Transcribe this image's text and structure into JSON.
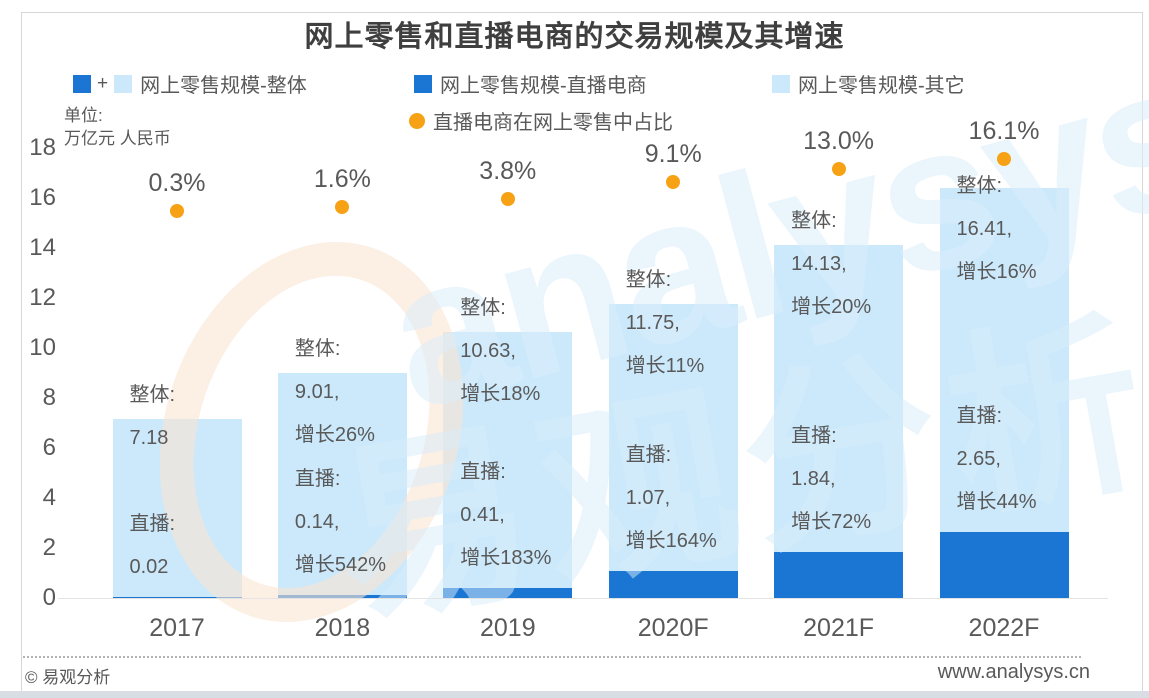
{
  "title": "网上零售和直播电商的交易规模及其增速",
  "unit": {
    "line1": "单位:",
    "line2": "万亿元 人民币"
  },
  "legend": {
    "overall": "网上零售规模-整体",
    "overall_plus": "+",
    "live": "网上零售规模-直播电商",
    "other": "网上零售规模-其它",
    "share": "直播电商在网上零售中占比"
  },
  "footer": {
    "copyright": "© 易观分析",
    "website": "www.analysys.cn"
  },
  "watermark": {
    "latin": "analysys",
    "cjk": "易观分析"
  },
  "colors": {
    "live_blue": "#1a76d2",
    "other_blue": "#cbe9fb",
    "share_orange": "#f7a114",
    "text_gray": "#595959",
    "title_gray": "#3f3f3f"
  },
  "chart_data": {
    "type": "bar",
    "stacked": true,
    "title": "网上零售和直播电商的交易规模及其增速",
    "ylabel": "万亿元 人民币",
    "ylim": [
      0,
      18
    ],
    "yticks": [
      0,
      2,
      4,
      6,
      8,
      10,
      12,
      14,
      16,
      18
    ],
    "grid": false,
    "legend_position": "top",
    "categories": [
      "2017",
      "2018",
      "2019",
      "2020F",
      "2021F",
      "2022F"
    ],
    "series": [
      {
        "name": "网上零售规模-直播电商",
        "color": "#1a76d2",
        "values": [
          0.02,
          0.14,
          0.41,
          1.07,
          1.84,
          2.65
        ]
      },
      {
        "name": "网上零售规模-其它",
        "color": "#cbe9fb",
        "values": [
          7.16,
          8.87,
          10.22,
          10.68,
          12.29,
          13.76
        ]
      }
    ],
    "totals": [
      7.18,
      9.01,
      10.63,
      11.75,
      14.13,
      16.41
    ],
    "share_series": {
      "name": "直播电商在网上零售中占比",
      "color": "#f7a114",
      "values_pct": [
        0.3,
        1.6,
        3.8,
        9.1,
        13.0,
        16.1
      ],
      "labels": [
        "0.3%",
        "1.6%",
        "3.8%",
        "9.1%",
        "13.0%",
        "16.1%"
      ]
    },
    "annotations": [
      {
        "total_lines": [
          "整体:",
          "7.18"
        ],
        "live_lines": [
          "直播:",
          "0.02"
        ]
      },
      {
        "total_lines": [
          "整体:",
          "9.01,",
          "增长26%"
        ],
        "live_lines": [
          "直播:",
          "0.14,",
          "增长542%"
        ]
      },
      {
        "total_lines": [
          "整体:",
          "10.63,",
          "增长18%"
        ],
        "live_lines": [
          "直播:",
          "0.41,",
          "增长183%"
        ]
      },
      {
        "total_lines": [
          "整体:",
          "11.75,",
          "增长11%"
        ],
        "live_lines": [
          "直播:",
          "1.07,",
          "增长164%"
        ]
      },
      {
        "total_lines": [
          "整体:",
          "14.13,",
          "增长20%"
        ],
        "live_lines": [
          "直播:",
          "1.84,",
          "增长72%"
        ]
      },
      {
        "total_lines": [
          "整体:",
          "16.41,",
          "增长16%"
        ],
        "live_lines": [
          "直播:",
          "2.65,",
          "增长44%"
        ]
      }
    ]
  }
}
